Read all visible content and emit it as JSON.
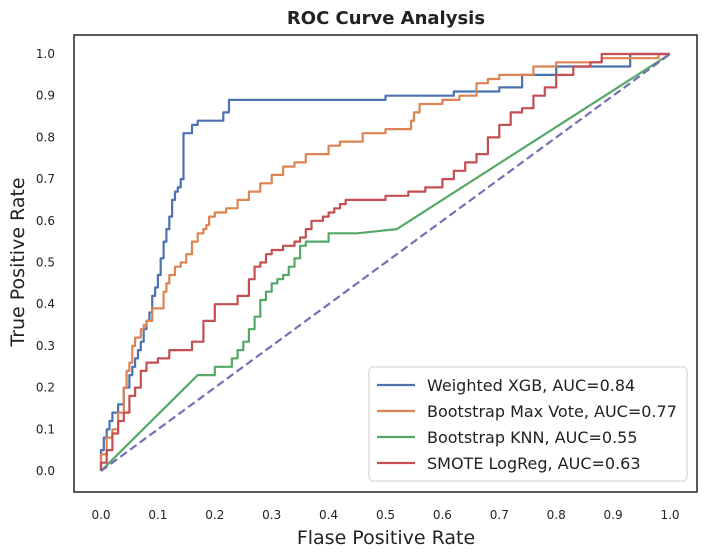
{
  "chart_data": {
    "type": "line",
    "title": "ROC Curve Analysis",
    "xlabel": "Flase Positive Rate",
    "ylabel": "True Positive Rate",
    "xlim": [
      0.0,
      1.0
    ],
    "ylim": [
      0.0,
      1.0
    ],
    "xticks": [
      "0.0",
      "0.1",
      "0.2",
      "0.3",
      "0.4",
      "0.5",
      "0.6",
      "0.7",
      "0.8",
      "0.9",
      "1.0"
    ],
    "yticks": [
      "0.0",
      "0.1",
      "0.2",
      "0.3",
      "0.4",
      "0.5",
      "0.6",
      "0.7",
      "0.8",
      "0.9",
      "1.0"
    ],
    "grid": false,
    "legend_position": "lower-right",
    "series": [
      {
        "name": "Weighted XGB, AUC=0.84",
        "color": "#4c72b0",
        "step": true,
        "x": [
          0,
          0,
          0.005,
          0.005,
          0.01,
          0.01,
          0.015,
          0.015,
          0.02,
          0.02,
          0.03,
          0.03,
          0.04,
          0.04,
          0.05,
          0.05,
          0.055,
          0.055,
          0.06,
          0.06,
          0.065,
          0.065,
          0.07,
          0.07,
          0.075,
          0.075,
          0.08,
          0.08,
          0.085,
          0.085,
          0.09,
          0.09,
          0.095,
          0.095,
          0.1,
          0.1,
          0.105,
          0.105,
          0.11,
          0.11,
          0.115,
          0.115,
          0.12,
          0.12,
          0.125,
          0.125,
          0.13,
          0.13,
          0.135,
          0.135,
          0.14,
          0.14,
          0.145,
          0.145,
          0.16,
          0.16,
          0.17,
          0.17,
          0.18,
          0.18,
          0.19,
          0.19,
          0.2,
          0.2,
          0.215,
          0.215,
          0.225,
          0.225,
          0.23,
          0.23,
          0.5,
          0.5,
          0.52,
          0.52,
          0.62,
          0.62,
          0.7,
          0.7,
          0.74,
          0.74,
          0.8,
          0.8,
          0.86,
          0.86,
          0.93,
          0.93,
          1.0
        ],
        "y": [
          0,
          0.05,
          0.05,
          0.08,
          0.08,
          0.1,
          0.1,
          0.12,
          0.12,
          0.14,
          0.14,
          0.16,
          0.16,
          0.2,
          0.2,
          0.23,
          0.23,
          0.25,
          0.25,
          0.27,
          0.27,
          0.29,
          0.29,
          0.31,
          0.31,
          0.34,
          0.34,
          0.36,
          0.36,
          0.38,
          0.38,
          0.42,
          0.42,
          0.44,
          0.44,
          0.47,
          0.47,
          0.51,
          0.51,
          0.55,
          0.55,
          0.58,
          0.58,
          0.61,
          0.61,
          0.65,
          0.65,
          0.67,
          0.67,
          0.68,
          0.68,
          0.7,
          0.7,
          0.81,
          0.81,
          0.83,
          0.83,
          0.84,
          0.84,
          0.84,
          0.84,
          0.84,
          0.84,
          0.84,
          0.84,
          0.86,
          0.86,
          0.89,
          0.89,
          0.89,
          0.89,
          0.9,
          0.9,
          0.9,
          0.9,
          0.91,
          0.91,
          0.92,
          0.92,
          0.95,
          0.95,
          0.97,
          0.97,
          0.97,
          0.97,
          1.0,
          1.0
        ]
      },
      {
        "name": "Bootstrap Max Vote, AUC=0.77",
        "color": "#dd8452",
        "step": true,
        "x": [
          0,
          0,
          0.01,
          0.01,
          0.02,
          0.02,
          0.03,
          0.03,
          0.04,
          0.04,
          0.045,
          0.045,
          0.05,
          0.05,
          0.055,
          0.055,
          0.06,
          0.06,
          0.07,
          0.07,
          0.075,
          0.075,
          0.08,
          0.08,
          0.09,
          0.09,
          0.1,
          0.1,
          0.11,
          0.11,
          0.115,
          0.115,
          0.12,
          0.12,
          0.13,
          0.13,
          0.14,
          0.14,
          0.15,
          0.15,
          0.16,
          0.16,
          0.17,
          0.17,
          0.18,
          0.18,
          0.185,
          0.185,
          0.19,
          0.19,
          0.2,
          0.2,
          0.22,
          0.22,
          0.24,
          0.24,
          0.26,
          0.26,
          0.28,
          0.28,
          0.3,
          0.3,
          0.32,
          0.32,
          0.34,
          0.34,
          0.36,
          0.36,
          0.38,
          0.38,
          0.4,
          0.4,
          0.42,
          0.42,
          0.46,
          0.46,
          0.5,
          0.5,
          0.54,
          0.54,
          0.545,
          0.545,
          0.55,
          0.55,
          0.56,
          0.56,
          0.6,
          0.6,
          0.63,
          0.63,
          0.66,
          0.66,
          0.68,
          0.68,
          0.7,
          0.7,
          0.72,
          0.72,
          0.76,
          0.76,
          0.8,
          0.8,
          0.88,
          0.88,
          0.98,
          0.98,
          1.0
        ],
        "y": [
          0,
          0.04,
          0.04,
          0.08,
          0.08,
          0.1,
          0.1,
          0.14,
          0.14,
          0.2,
          0.2,
          0.24,
          0.24,
          0.26,
          0.26,
          0.3,
          0.3,
          0.32,
          0.32,
          0.34,
          0.34,
          0.35,
          0.35,
          0.36,
          0.36,
          0.39,
          0.39,
          0.39,
          0.39,
          0.43,
          0.43,
          0.45,
          0.45,
          0.47,
          0.47,
          0.49,
          0.49,
          0.5,
          0.5,
          0.52,
          0.52,
          0.55,
          0.55,
          0.57,
          0.57,
          0.58,
          0.58,
          0.59,
          0.59,
          0.61,
          0.61,
          0.62,
          0.62,
          0.63,
          0.63,
          0.65,
          0.65,
          0.67,
          0.67,
          0.69,
          0.69,
          0.71,
          0.71,
          0.73,
          0.73,
          0.74,
          0.74,
          0.76,
          0.76,
          0.76,
          0.76,
          0.78,
          0.78,
          0.79,
          0.79,
          0.81,
          0.81,
          0.82,
          0.82,
          0.82,
          0.82,
          0.84,
          0.84,
          0.86,
          0.86,
          0.88,
          0.88,
          0.89,
          0.89,
          0.9,
          0.9,
          0.93,
          0.93,
          0.94,
          0.94,
          0.95,
          0.95,
          0.95,
          0.95,
          0.97,
          0.97,
          0.98,
          0.98,
          0.99,
          0.99,
          1.0,
          1.0
        ]
      },
      {
        "name": "Bootstrap KNN, AUC=0.55",
        "color": "#55a868",
        "step": false,
        "x": [
          0.0,
          0.17,
          0.2,
          0.2,
          0.23,
          0.23,
          0.24,
          0.24,
          0.25,
          0.25,
          0.26,
          0.26,
          0.27,
          0.27,
          0.28,
          0.28,
          0.29,
          0.29,
          0.3,
          0.3,
          0.31,
          0.31,
          0.32,
          0.32,
          0.33,
          0.33,
          0.34,
          0.34,
          0.35,
          0.35,
          0.36,
          0.36,
          0.4,
          0.4,
          0.45,
          0.45,
          0.52,
          1.0
        ],
        "y": [
          0.0,
          0.23,
          0.23,
          0.25,
          0.25,
          0.27,
          0.27,
          0.29,
          0.29,
          0.31,
          0.31,
          0.34,
          0.34,
          0.37,
          0.37,
          0.41,
          0.41,
          0.43,
          0.43,
          0.45,
          0.45,
          0.46,
          0.46,
          0.47,
          0.47,
          0.49,
          0.49,
          0.51,
          0.51,
          0.54,
          0.54,
          0.55,
          0.55,
          0.57,
          0.57,
          0.57,
          0.58,
          1.0
        ]
      },
      {
        "name": "SMOTE LogReg, AUC=0.63",
        "color": "#c44e52",
        "step": true,
        "x": [
          0,
          0,
          0.01,
          0.01,
          0.02,
          0.02,
          0.03,
          0.03,
          0.04,
          0.04,
          0.05,
          0.05,
          0.06,
          0.06,
          0.07,
          0.07,
          0.08,
          0.08,
          0.1,
          0.1,
          0.12,
          0.12,
          0.16,
          0.16,
          0.18,
          0.18,
          0.2,
          0.2,
          0.24,
          0.24,
          0.26,
          0.26,
          0.27,
          0.27,
          0.28,
          0.28,
          0.29,
          0.29,
          0.3,
          0.3,
          0.32,
          0.32,
          0.34,
          0.34,
          0.35,
          0.35,
          0.36,
          0.36,
          0.37,
          0.37,
          0.38,
          0.38,
          0.39,
          0.39,
          0.4,
          0.4,
          0.41,
          0.41,
          0.42,
          0.42,
          0.43,
          0.43,
          0.44,
          0.44,
          0.46,
          0.46,
          0.5,
          0.5,
          0.54,
          0.54,
          0.57,
          0.57,
          0.6,
          0.6,
          0.62,
          0.62,
          0.64,
          0.64,
          0.66,
          0.66,
          0.68,
          0.68,
          0.7,
          0.7,
          0.72,
          0.72,
          0.74,
          0.74,
          0.76,
          0.76,
          0.78,
          0.78,
          0.8,
          0.8,
          0.83,
          0.83,
          0.86,
          0.86,
          0.88,
          0.88,
          1.0
        ],
        "y": [
          0,
          0.02,
          0.02,
          0.05,
          0.05,
          0.09,
          0.09,
          0.12,
          0.12,
          0.14,
          0.14,
          0.18,
          0.18,
          0.2,
          0.2,
          0.24,
          0.24,
          0.26,
          0.26,
          0.27,
          0.27,
          0.29,
          0.29,
          0.31,
          0.31,
          0.36,
          0.36,
          0.4,
          0.4,
          0.42,
          0.42,
          0.46,
          0.46,
          0.49,
          0.49,
          0.5,
          0.5,
          0.52,
          0.52,
          0.53,
          0.53,
          0.54,
          0.54,
          0.55,
          0.55,
          0.56,
          0.56,
          0.58,
          0.58,
          0.6,
          0.6,
          0.6,
          0.6,
          0.61,
          0.61,
          0.62,
          0.62,
          0.63,
          0.63,
          0.64,
          0.64,
          0.65,
          0.65,
          0.65,
          0.65,
          0.65,
          0.65,
          0.66,
          0.66,
          0.67,
          0.67,
          0.68,
          0.68,
          0.7,
          0.7,
          0.72,
          0.72,
          0.74,
          0.74,
          0.76,
          0.76,
          0.8,
          0.8,
          0.83,
          0.83,
          0.86,
          0.86,
          0.87,
          0.87,
          0.9,
          0.9,
          0.92,
          0.92,
          0.95,
          0.95,
          0.97,
          0.97,
          0.98,
          0.98,
          1.0,
          1.0
        ]
      },
      {
        "name": "",
        "color": "#7570b3",
        "dashed": true,
        "step": false,
        "x": [
          0.0,
          1.0
        ],
        "y": [
          0.0,
          1.0
        ]
      }
    ]
  }
}
